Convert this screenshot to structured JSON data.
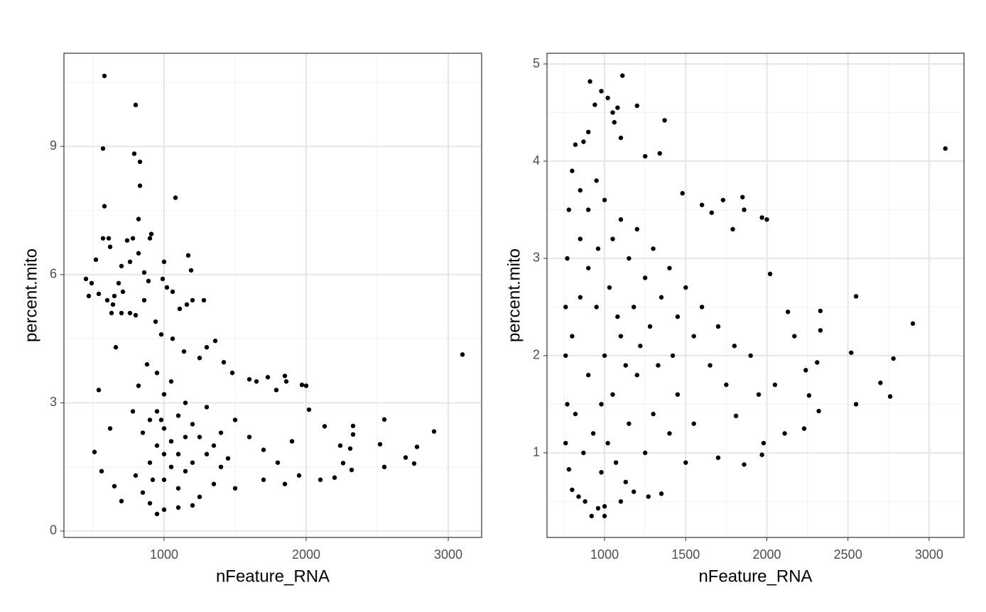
{
  "chart_data": [
    {
      "type": "scatter",
      "xlabel": "nFeature_RNA",
      "ylabel": "percent.mito",
      "color": "#000000",
      "grid": true,
      "xlim": [
        295,
        3235
      ],
      "ylim": [
        -0.15,
        11.18
      ],
      "xticks": [
        1000,
        2000,
        3000
      ],
      "yticks": [
        0,
        3,
        6,
        9
      ],
      "xminor": [
        500,
        1500,
        2500
      ],
      "yminor": [
        1.5,
        4.5,
        7.5,
        10.5
      ],
      "x": [
        580,
        800,
        570,
        790,
        830,
        830,
        1080,
        580,
        820,
        450,
        490,
        520,
        910,
        900,
        570,
        610,
        620,
        740,
        780,
        820,
        760,
        700,
        1000,
        1170,
        1190,
        1200,
        990,
        1020,
        1060,
        860,
        890,
        650,
        640,
        600,
        630,
        700,
        760,
        800,
        710,
        680,
        540,
        470,
        860,
        1110,
        1280,
        1160,
        940,
        980,
        1060,
        660,
        540,
        510,
        560,
        620,
        650,
        700,
        3100,
        2900,
        2780,
        2760,
        2700,
        2550,
        2550,
        2520,
        2330,
        2330,
        2320,
        2310,
        2260,
        2200,
        2240,
        2100,
        2130,
        2000,
        1970,
        2020,
        1850,
        1860,
        1790,
        1730,
        1650,
        1600,
        1480,
        1420,
        1360,
        1250,
        1140,
        1300,
        1500,
        1600,
        1700,
        1800,
        1900,
        1950,
        1850,
        1700,
        1500,
        1400,
        1300,
        1350,
        1250,
        1200,
        1100,
        1000,
        950,
        900,
        850,
        800,
        780,
        820,
        880,
        950,
        1000,
        1050,
        1100,
        1150,
        1200,
        1250,
        1300,
        1350,
        1400,
        1450,
        1150,
        1100,
        1050,
        1000,
        950,
        900,
        850,
        1000,
        950,
        1050,
        900,
        1100,
        1200,
        1150,
        1000,
        920,
        980
      ],
      "values": [
        10.65,
        9.97,
        8.95,
        8.83,
        8.64,
        8.08,
        7.8,
        7.6,
        7.3,
        5.9,
        5.8,
        6.35,
        6.95,
        6.85,
        6.85,
        6.85,
        6.65,
        6.8,
        6.85,
        6.5,
        6.3,
        6.2,
        6.3,
        6.45,
        6.1,
        5.4,
        5.9,
        5.7,
        5.6,
        6.05,
        5.85,
        5.5,
        5.3,
        5.4,
        5.1,
        5.1,
        5.1,
        5.05,
        5.6,
        5.8,
        5.55,
        5.5,
        5.4,
        5.2,
        5.4,
        5.3,
        4.9,
        4.6,
        4.5,
        4.3,
        3.3,
        1.85,
        1.4,
        2.4,
        1.05,
        0.7,
        4.13,
        2.33,
        1.97,
        1.58,
        1.72,
        1.5,
        2.61,
        2.03,
        2.46,
        2.26,
        1.43,
        1.93,
        1.59,
        1.25,
        2.0,
        1.2,
        2.45,
        3.4,
        3.42,
        2.84,
        3.63,
        3.5,
        3.3,
        3.6,
        3.5,
        3.55,
        3.7,
        3.95,
        4.45,
        4.05,
        4.2,
        4.3,
        2.6,
        2.2,
        1.9,
        1.6,
        2.1,
        1.3,
        1.1,
        1.2,
        1.0,
        1.5,
        2.9,
        1.1,
        0.8,
        0.6,
        0.55,
        0.5,
        0.4,
        0.65,
        0.9,
        1.3,
        2.8,
        3.4,
        3.9,
        3.7,
        3.2,
        3.5,
        2.7,
        3.0,
        2.5,
        2.2,
        1.8,
        2.0,
        2.3,
        1.7,
        1.4,
        1.8,
        2.1,
        2.4,
        2.0,
        1.6,
        2.3,
        1.2,
        2.8,
        1.5,
        2.6,
        1.0,
        1.6,
        2.2,
        1.8,
        1.2,
        2.6
      ]
    },
    {
      "type": "scatter",
      "xlabel": "nFeature_RNA",
      "ylabel": "percent.mito",
      "color": "#000000",
      "grid": true,
      "xlim": [
        645,
        3215
      ],
      "ylim": [
        0.13,
        5.11
      ],
      "xticks": [
        1000,
        1500,
        2000,
        2500,
        3000
      ],
      "yticks": [
        1,
        2,
        3,
        4,
        5
      ],
      "xminor": [
        750,
        1250,
        1750,
        2250,
        2750
      ],
      "yminor": [
        0.5,
        1.5,
        2.5,
        3.5,
        4.5
      ],
      "x": [
        3100,
        2900,
        2780,
        2760,
        2700,
        2550,
        2550,
        2520,
        2330,
        2330,
        2320,
        2310,
        2260,
        2230,
        2240,
        2110,
        2130,
        2170,
        2000,
        1970,
        2020,
        1850,
        1860,
        1790,
        1730,
        1660,
        1600,
        1480,
        1370,
        1340,
        1250,
        1200,
        1110,
        910,
        940,
        980,
        1020,
        1050,
        1080,
        1100,
        820,
        870,
        900,
        1060,
        1860,
        1970,
        1980,
        1810,
        1700,
        1500,
        1350,
        1270,
        1180,
        1100,
        1000,
        1000,
        920,
        960,
        880,
        840,
        800,
        780,
        760,
        770,
        760,
        760,
        770,
        780,
        800,
        850,
        900,
        950,
        1000,
        1050,
        1100,
        1150,
        1200,
        1250,
        1300,
        1350,
        1400,
        1450,
        1500,
        1550,
        1600,
        1650,
        1700,
        1750,
        1800,
        1900,
        1950,
        2050,
        1550,
        1450,
        1400,
        1300,
        1250,
        1200,
        1150,
        1100,
        1050,
        1000,
        950,
        900,
        850,
        800,
        820,
        870,
        930,
        980,
        1020,
        1070,
        1130,
        1180,
        1220,
        900,
        960,
        850,
        1030,
        1080,
        1130,
        980,
        1280,
        1330,
        1420
      ],
      "values": [
        4.13,
        2.33,
        1.97,
        1.58,
        1.72,
        1.5,
        2.61,
        2.03,
        2.46,
        2.26,
        1.43,
        1.93,
        1.59,
        1.25,
        1.85,
        1.2,
        2.45,
        2.2,
        3.4,
        3.42,
        2.84,
        3.63,
        3.5,
        3.3,
        3.6,
        3.47,
        3.55,
        3.67,
        4.42,
        4.08,
        4.05,
        4.57,
        4.88,
        4.82,
        4.58,
        4.72,
        4.65,
        4.5,
        4.55,
        4.24,
        4.17,
        4.2,
        4.3,
        4.4,
        0.88,
        0.98,
        1.1,
        1.38,
        0.95,
        0.9,
        0.58,
        0.55,
        0.6,
        0.5,
        0.45,
        0.35,
        0.35,
        0.43,
        0.5,
        0.55,
        0.62,
        0.83,
        1.1,
        1.5,
        2.0,
        2.5,
        3.0,
        3.5,
        3.9,
        3.7,
        3.5,
        3.8,
        3.6,
        3.2,
        3.4,
        3.0,
        3.3,
        2.8,
        3.1,
        2.6,
        2.9,
        2.4,
        2.7,
        2.2,
        2.5,
        1.9,
        2.3,
        1.7,
        2.1,
        2.0,
        1.6,
        1.7,
        1.3,
        1.6,
        1.2,
        1.4,
        1.0,
        1.8,
        1.3,
        2.2,
        1.6,
        2.0,
        2.5,
        1.8,
        2.6,
        2.2,
        1.4,
        1.0,
        1.2,
        0.8,
        1.1,
        0.9,
        0.7,
        2.5,
        2.1,
        2.9,
        3.1,
        3.2,
        2.7,
        2.4,
        1.9,
        1.5,
        2.3,
        1.9,
        2.0
      ]
    }
  ]
}
